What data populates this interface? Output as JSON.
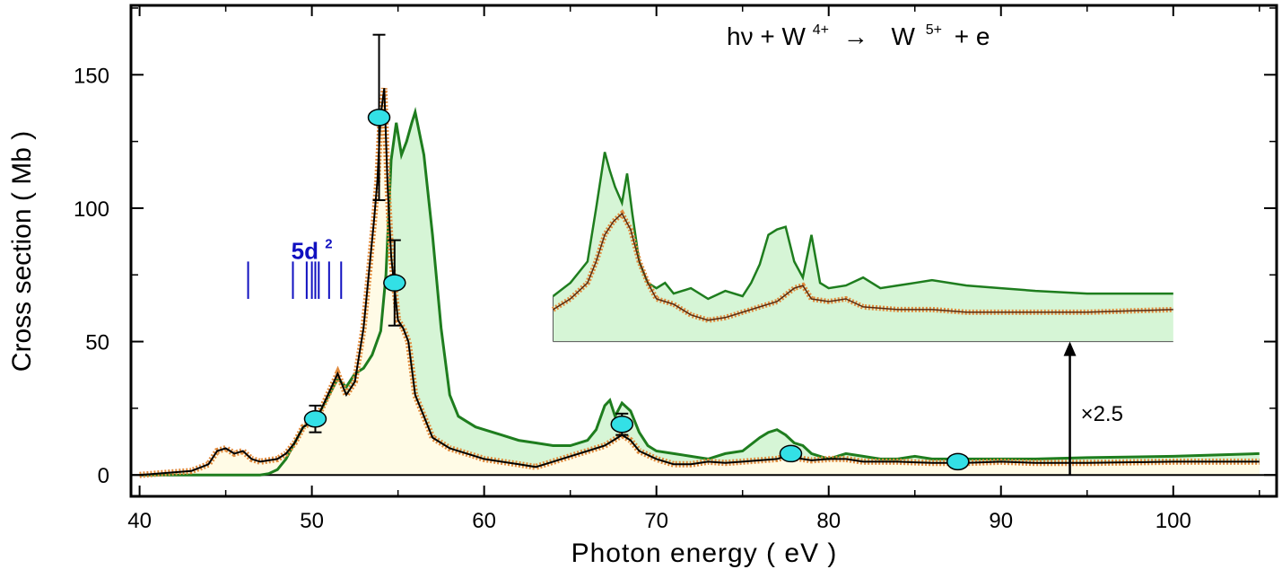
{
  "chart_data": {
    "type": "line",
    "title": "hν + W⁴⁺ → W⁵⁺ + e",
    "title_parts": {
      "left": "hν + W",
      "sup1": "4+",
      "arrow": "→",
      "mid": "W",
      "sup2": "5+",
      "right": "+ e"
    },
    "xlabel": "Photon energy  ( eV )",
    "ylabel": "Cross section ( Mb )",
    "xlim": [
      39.5,
      106
    ],
    "ylim": [
      -8,
      176
    ],
    "x_ticks": [
      40,
      50,
      60,
      70,
      80,
      90,
      100
    ],
    "y_ticks": [
      0,
      50,
      100,
      150
    ],
    "grid": false,
    "colors": {
      "theory_line": "#1e7d1e",
      "theory_fill": "#d6f5d6",
      "experiment_fill": "#fffbe6",
      "experiment_points": "#e08a3c",
      "experiment_line": "#000000",
      "absolute_points": "#33e0e6",
      "levels": "#1010c0"
    },
    "series": [
      {
        "role": "theory",
        "x": [
          40,
          42,
          44,
          45,
          46,
          47,
          47.5,
          48,
          48.5,
          49,
          49.5,
          50,
          50.5,
          51,
          51.5,
          52,
          52.5,
          53,
          53.5,
          54,
          54.3,
          54.6,
          54.9,
          55.2,
          55.5,
          55.8,
          56,
          56.5,
          57,
          57.5,
          58,
          58.5,
          59,
          59.5,
          60,
          61,
          62,
          63,
          64,
          65,
          66,
          66.5,
          67,
          67.3,
          67.6,
          68,
          68.5,
          69,
          69.5,
          70,
          71,
          72,
          73,
          74,
          75,
          76,
          76.5,
          77,
          77.5,
          78,
          78.5,
          79,
          79.5,
          80,
          81,
          82,
          83,
          84,
          85,
          86,
          88,
          90,
          92,
          95,
          100,
          105
        ],
        "y": [
          0,
          0,
          0,
          0,
          0,
          0,
          0.5,
          2,
          6,
          12,
          18,
          20,
          24,
          30,
          36,
          33,
          38,
          40,
          45,
          54,
          75,
          118,
          132,
          120,
          125,
          132,
          136,
          120,
          90,
          55,
          30,
          22,
          20,
          18,
          17,
          15,
          13,
          12,
          11,
          11,
          13,
          17,
          26,
          28,
          22,
          27,
          24,
          16,
          11,
          9,
          8,
          7,
          6,
          8,
          9,
          14,
          16,
          17,
          15,
          12,
          11,
          8,
          7,
          6,
          8,
          7,
          6,
          6,
          7,
          6,
          6,
          6,
          6,
          6.5,
          7,
          8
        ]
      },
      {
        "role": "experiment",
        "x": [
          40,
          41,
          42,
          43,
          44,
          44.5,
          45,
          45.5,
          46,
          46.5,
          47,
          48,
          48.5,
          49,
          49.5,
          50,
          50.5,
          51,
          51.5,
          52,
          52.5,
          53,
          53.3,
          53.6,
          53.8,
          54,
          54.2,
          54.4,
          54.6,
          54.8,
          55,
          55.3,
          55.6,
          56,
          56.5,
          57,
          57.5,
          58,
          59,
          60,
          61,
          62,
          63,
          64,
          65,
          66,
          67,
          67.5,
          68,
          68.5,
          69,
          70,
          71,
          72,
          73,
          74,
          75,
          76,
          77,
          77.5,
          78,
          79,
          80,
          81,
          82,
          84,
          86,
          88,
          90,
          92,
          95,
          100,
          105
        ],
        "y": [
          0,
          0.5,
          1,
          1.5,
          4,
          9,
          10,
          8,
          9,
          6,
          5,
          6,
          8,
          12,
          18,
          20,
          24,
          31,
          38,
          30,
          35,
          55,
          75,
          95,
          110,
          135,
          145,
          108,
          82,
          70,
          58,
          55,
          50,
          30,
          22,
          14,
          12,
          10,
          8,
          6,
          5,
          4,
          3,
          5,
          7,
          9,
          11,
          13,
          15,
          13,
          9,
          6,
          4,
          4,
          5,
          4.5,
          5,
          5.5,
          6,
          7,
          6.5,
          5.5,
          6,
          6,
          5,
          5,
          4.5,
          4.5,
          5,
          4.5,
          4.5,
          5,
          5
        ]
      }
    ],
    "absolute_points": [
      {
        "x": 50.2,
        "y": 21,
        "err": 5
      },
      {
        "x": 53.9,
        "y": 134,
        "err": 31
      },
      {
        "x": 54.8,
        "y": 72,
        "err": 16
      },
      {
        "x": 68,
        "y": 19,
        "err": 4
      },
      {
        "x": 77.8,
        "y": 8,
        "err": 2
      },
      {
        "x": 87.5,
        "y": 5,
        "err": 1.5
      }
    ],
    "levels_label": {
      "base": "5d",
      "sup": "2"
    },
    "levels_label_pos": {
      "x": 50,
      "y": 81
    },
    "levels": [
      46.3,
      48.9,
      49.7,
      50.0,
      50.2,
      50.4,
      51.0,
      51.7
    ],
    "levels_range": [
      66,
      80
    ],
    "inset": {
      "x_range": [
        64,
        100
      ],
      "baseline_y": 50,
      "theory": {
        "x": [
          64,
          65,
          66,
          66.5,
          67,
          67.3,
          67.6,
          68,
          68.3,
          68.6,
          69,
          69.5,
          70,
          70.5,
          71,
          72,
          73,
          74,
          75,
          75.5,
          76,
          76.5,
          77,
          77.5,
          78,
          78.5,
          79,
          79.5,
          80,
          81,
          82,
          83,
          84,
          85,
          86,
          88,
          90,
          92,
          95,
          100
        ],
        "y": [
          67,
          72,
          80,
          100,
          121,
          114,
          108,
          102,
          113,
          98,
          80,
          72,
          70,
          72,
          68,
          70,
          66,
          69,
          67,
          72,
          79,
          90,
          92,
          93,
          80,
          74,
          90,
          72,
          70,
          71,
          74,
          70,
          71,
          72,
          73,
          71,
          70,
          69,
          68,
          68
        ]
      },
      "experiment": {
        "x": [
          64,
          65,
          66,
          66.5,
          67,
          67.5,
          68,
          68.5,
          69,
          69.5,
          70,
          71,
          72,
          73,
          74,
          75,
          76,
          77,
          78,
          78.5,
          79,
          80,
          81,
          82,
          84,
          86,
          88,
          90,
          92,
          95,
          100
        ],
        "y": [
          62,
          66,
          72,
          80,
          90,
          95,
          98,
          92,
          80,
          72,
          66,
          64,
          60,
          58,
          59,
          61,
          63,
          65,
          70,
          71,
          66,
          65,
          66,
          63,
          62,
          62,
          61,
          61,
          61,
          61,
          62
        ]
      }
    },
    "annotations": [
      {
        "text": "×2.5",
        "x": 94,
        "y": 23
      },
      {
        "text": "arrow",
        "x": 94,
        "y_from": 0,
        "y_to": 50
      }
    ]
  }
}
